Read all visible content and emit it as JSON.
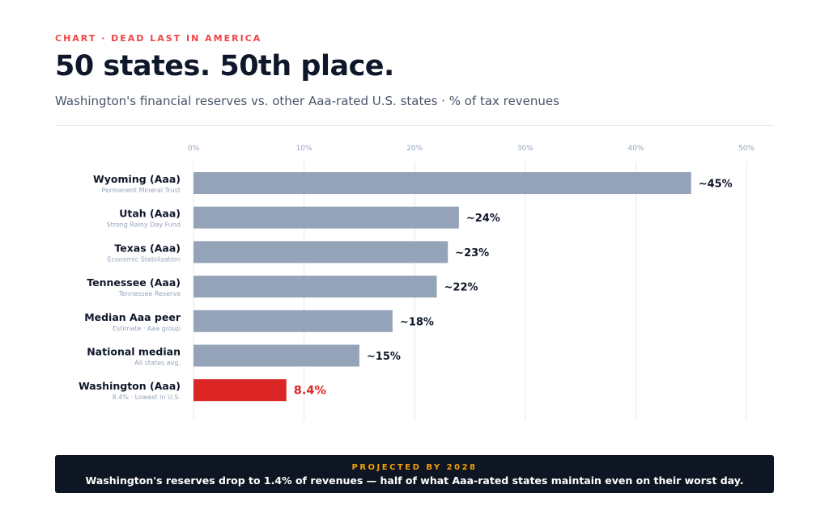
{
  "header": {
    "eyebrow": "CHART · DEAD LAST IN AMERICA",
    "title": "50 states. 50th place.",
    "subtitle": "Washington's financial reserves vs. other Aaa-rated U.S. states · % of tax revenues"
  },
  "footer": {
    "kicker": "PROJECTED BY 2028",
    "text": "Washington's reserves drop to 1.4% of revenues — half of what Aaa-rated states maintain even on their worst day."
  },
  "chart_data": {
    "type": "bar",
    "orientation": "horizontal",
    "xlim": [
      0,
      50
    ],
    "ticks": [
      0,
      10,
      20,
      30,
      40,
      50
    ],
    "tick_labels": [
      "0%",
      "10%",
      "20%",
      "30%",
      "40%",
      "50%"
    ],
    "grid": true,
    "categories": [
      "Wyoming (Aaa)",
      "Utah (Aaa)",
      "Texas (Aaa)",
      "Tennessee (Aaa)",
      "Median Aaa peer",
      "National median",
      "Washington (Aaa)"
    ],
    "sublabels": [
      "Permanent Mineral Trust",
      "Strong Rainy Day Fund",
      "Economic Stabilization",
      "Tennessee Reserve",
      "Estimate · Aaa group",
      "All states avg.",
      "8.4% · Lowest in U.S."
    ],
    "values": [
      45,
      24,
      23,
      22,
      18,
      15,
      8.4
    ],
    "value_labels": [
      "~45%",
      "~24%",
      "~23%",
      "~22%",
      "~18%",
      "~15%",
      "8.4%"
    ],
    "highlight_index": 6,
    "colors": {
      "bar": "#94a3b8",
      "highlight": "#dc2626",
      "grid": "#e5e7eb",
      "tick": "#94a3b8",
      "label": "#0f172a",
      "sublabel": "#94a3b8"
    }
  }
}
